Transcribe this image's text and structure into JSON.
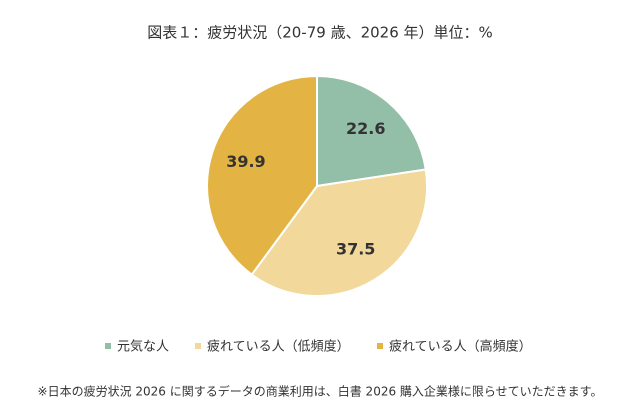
{
  "chart_data": {
    "type": "pie",
    "title": "図表１：疲労状況（20-79 歳、2026 年）単位：%",
    "categories": [
      "元気な人",
      "疲れている人（低頻度）",
      "疲れている人（高頻度）"
    ],
    "values": [
      22.6,
      37.5,
      39.9
    ],
    "colors": [
      "#93bfa9",
      "#f2d99b",
      "#e3b443"
    ],
    "legend": "bottom",
    "note": "※日本の疲労状況 2026 に関するデータの商業利用は、白書 2026 購入企業様に限らせていただきます。"
  }
}
